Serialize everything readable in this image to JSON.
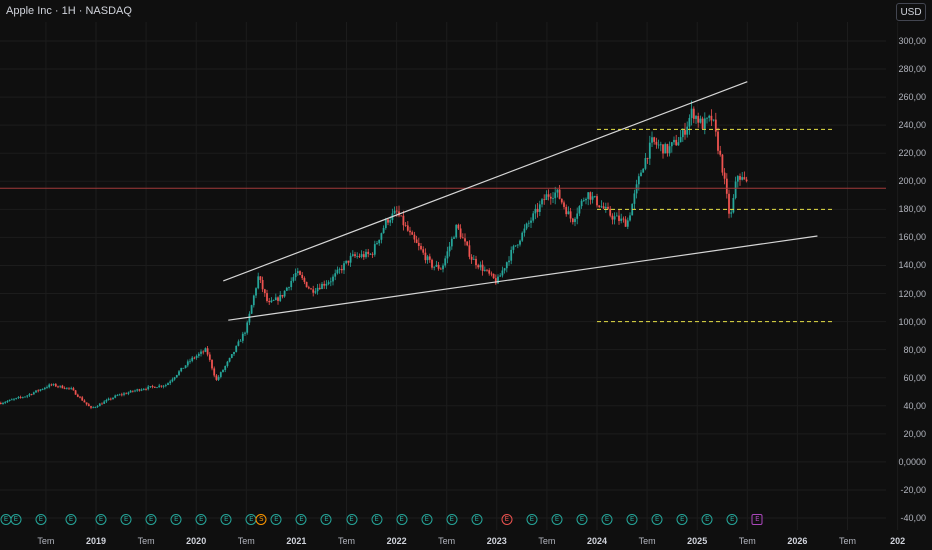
{
  "header": {
    "title": "Apple Inc · 1H · NASDAQ",
    "currency": "USD"
  },
  "colors": {
    "background": "#0f0f0f",
    "up": "#26a69a",
    "down": "#ef5350",
    "grid": "#1c1c1c",
    "trendline": "#d6d6d6",
    "support_lines": "#e6e045",
    "price_line": "#a23a3a"
  },
  "chart_data": {
    "type": "candlestick",
    "symbol": "Apple Inc",
    "interval": "1H",
    "exchange": "NASDAQ",
    "ylim": [
      -40,
      310
    ],
    "y_ticks": [
      "300,00",
      "280,00",
      "260,00",
      "240,00",
      "220,00",
      "200,00",
      "180,00",
      "160,00",
      "140,00",
      "120,00",
      "100,00",
      "80,00",
      "60,00",
      "40,00",
      "20,00",
      "0,0000",
      "-20,00",
      "-40,00"
    ],
    "y_tick_values": [
      300,
      280,
      260,
      240,
      220,
      200,
      180,
      160,
      140,
      120,
      100,
      80,
      60,
      40,
      20,
      0,
      -20,
      -40
    ],
    "x_ticks": [
      {
        "label": "Tem",
        "t": 2018.5,
        "major": false
      },
      {
        "label": "2019",
        "t": 2019.0,
        "major": true
      },
      {
        "label": "Tem",
        "t": 2019.5,
        "major": false
      },
      {
        "label": "2020",
        "t": 2020.0,
        "major": true
      },
      {
        "label": "Tem",
        "t": 2020.5,
        "major": false
      },
      {
        "label": "2021",
        "t": 2021.0,
        "major": true
      },
      {
        "label": "Tem",
        "t": 2021.5,
        "major": false
      },
      {
        "label": "2022",
        "t": 2022.0,
        "major": true
      },
      {
        "label": "Tem",
        "t": 2022.5,
        "major": false
      },
      {
        "label": "2023",
        "t": 2023.0,
        "major": true
      },
      {
        "label": "Tem",
        "t": 2023.5,
        "major": false
      },
      {
        "label": "2024",
        "t": 2024.0,
        "major": true
      },
      {
        "label": "Tem",
        "t": 2024.5,
        "major": false
      },
      {
        "label": "2025",
        "t": 2025.0,
        "major": true
      },
      {
        "label": "Tem",
        "t": 2025.5,
        "major": false
      },
      {
        "label": "2026",
        "t": 2026.0,
        "major": true
      },
      {
        "label": "Tem",
        "t": 2026.5,
        "major": false
      },
      {
        "label": "202",
        "t": 2027.0,
        "major": true
      }
    ],
    "price_path": [
      [
        2018.05,
        42
      ],
      [
        2018.3,
        47
      ],
      [
        2018.55,
        55
      ],
      [
        2018.75,
        52
      ],
      [
        2018.95,
        38
      ],
      [
        2019.2,
        47
      ],
      [
        2019.45,
        52
      ],
      [
        2019.7,
        55
      ],
      [
        2019.95,
        73
      ],
      [
        2020.1,
        80
      ],
      [
        2020.2,
        58
      ],
      [
        2020.35,
        75
      ],
      [
        2020.5,
        95
      ],
      [
        2020.62,
        132
      ],
      [
        2020.72,
        112
      ],
      [
        2020.85,
        118
      ],
      [
        2021.0,
        135
      ],
      [
        2021.15,
        122
      ],
      [
        2021.35,
        130
      ],
      [
        2021.55,
        146
      ],
      [
        2021.75,
        148
      ],
      [
        2021.9,
        172
      ],
      [
        2022.0,
        178
      ],
      [
        2022.15,
        160
      ],
      [
        2022.35,
        140
      ],
      [
        2022.45,
        138
      ],
      [
        2022.6,
        168
      ],
      [
        2022.75,
        145
      ],
      [
        2022.9,
        135
      ],
      [
        2023.0,
        128
      ],
      [
        2023.15,
        150
      ],
      [
        2023.3,
        168
      ],
      [
        2023.5,
        190
      ],
      [
        2023.6,
        192
      ],
      [
        2023.75,
        172
      ],
      [
        2023.9,
        192
      ],
      [
        2024.0,
        185
      ],
      [
        2024.15,
        175
      ],
      [
        2024.3,
        170
      ],
      [
        2024.45,
        210
      ],
      [
        2024.55,
        228
      ],
      [
        2024.7,
        222
      ],
      [
        2024.85,
        232
      ],
      [
        2024.95,
        250
      ],
      [
        2025.05,
        240
      ],
      [
        2025.15,
        245
      ],
      [
        2025.25,
        210
      ],
      [
        2025.33,
        172
      ],
      [
        2025.4,
        205
      ],
      [
        2025.5,
        198
      ]
    ],
    "trendlines": [
      {
        "from": [
          2020.27,
          129
        ],
        "to": [
          2025.5,
          271
        ]
      },
      {
        "from": [
          2020.32,
          101
        ],
        "to": [
          2026.2,
          161
        ]
      }
    ],
    "horizontal_levels": [
      {
        "price": 237,
        "from": 2024.0,
        "to": 2026.35
      },
      {
        "price": 180,
        "from": 2024.0,
        "to": 2026.35
      },
      {
        "price": 100,
        "from": 2024.0,
        "to": 2026.35
      }
    ],
    "current_price": 195,
    "grid": true,
    "legend": "none"
  },
  "events": [
    {
      "t": 2018.0,
      "glyph": "E",
      "kind": "earn"
    },
    {
      "t": 2018.2,
      "glyph": "E",
      "kind": "earn"
    },
    {
      "t": 2018.45,
      "glyph": "E",
      "kind": "earn"
    },
    {
      "t": 2018.75,
      "glyph": "E",
      "kind": "earn"
    },
    {
      "t": 2019.05,
      "glyph": "E",
      "kind": "earn"
    },
    {
      "t": 2019.3,
      "glyph": "E",
      "kind": "earn"
    },
    {
      "t": 2019.55,
      "glyph": "E",
      "kind": "earn"
    },
    {
      "t": 2019.8,
      "glyph": "E",
      "kind": "earn"
    },
    {
      "t": 2020.05,
      "glyph": "E",
      "kind": "earn"
    },
    {
      "t": 2020.3,
      "glyph": "E",
      "kind": "earn"
    },
    {
      "t": 2020.55,
      "glyph": "E",
      "kind": "earn"
    },
    {
      "t": 2020.65,
      "glyph": "S",
      "kind": "split"
    },
    {
      "t": 2020.8,
      "glyph": "E",
      "kind": "earn"
    },
    {
      "t": 2021.05,
      "glyph": "E",
      "kind": "earn"
    },
    {
      "t": 2021.3,
      "glyph": "E",
      "kind": "earn"
    },
    {
      "t": 2021.55,
      "glyph": "E",
      "kind": "earn"
    },
    {
      "t": 2021.8,
      "glyph": "E",
      "kind": "earn"
    },
    {
      "t": 2022.05,
      "glyph": "E",
      "kind": "earn"
    },
    {
      "t": 2022.3,
      "glyph": "E",
      "kind": "earn"
    },
    {
      "t": 2022.55,
      "glyph": "E",
      "kind": "earn"
    },
    {
      "t": 2022.8,
      "glyph": "E",
      "kind": "earn"
    },
    {
      "t": 2023.1,
      "glyph": "E",
      "kind": "miss"
    },
    {
      "t": 2023.35,
      "glyph": "E",
      "kind": "earn"
    },
    {
      "t": 2023.6,
      "glyph": "E",
      "kind": "earn"
    },
    {
      "t": 2023.85,
      "glyph": "E",
      "kind": "earn"
    },
    {
      "t": 2024.1,
      "glyph": "E",
      "kind": "earn"
    },
    {
      "t": 2024.35,
      "glyph": "E",
      "kind": "earn"
    },
    {
      "t": 2024.6,
      "glyph": "E",
      "kind": "earn"
    },
    {
      "t": 2024.85,
      "glyph": "E",
      "kind": "earn"
    },
    {
      "t": 2025.1,
      "glyph": "E",
      "kind": "earn"
    },
    {
      "t": 2025.35,
      "glyph": "E",
      "kind": "earn"
    },
    {
      "t": 2025.6,
      "glyph": "E",
      "kind": "future"
    }
  ]
}
